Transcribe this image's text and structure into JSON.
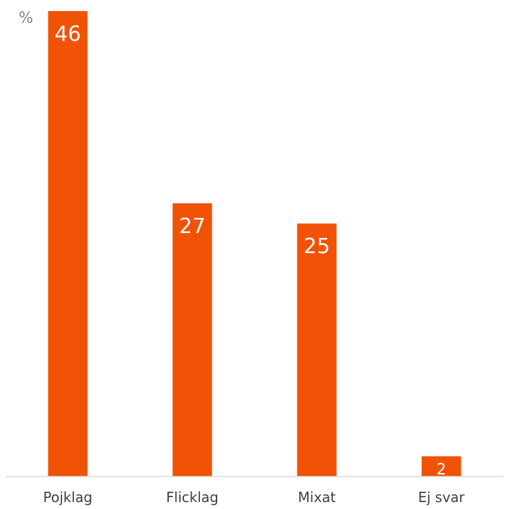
{
  "chart_data": {
    "type": "bar",
    "unit_label": "%",
    "categories": [
      "Pojklag",
      "Flicklag",
      "Mixat",
      "Ej svar"
    ],
    "values": [
      46,
      27,
      25,
      2
    ],
    "data_labels": [
      "46",
      "27",
      "25",
      "2"
    ],
    "ylim": [
      0,
      46
    ],
    "grid": false,
    "legend": "none",
    "colors": {
      "bar": "#f05206",
      "data_label": "#ffffff",
      "axis": "#d9d9d9",
      "tick_label": "#404040",
      "unit_label": "#808080"
    }
  }
}
